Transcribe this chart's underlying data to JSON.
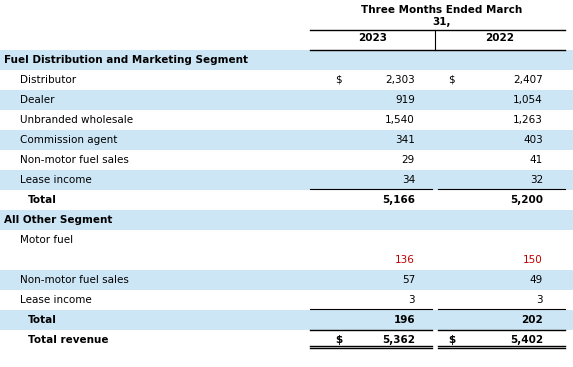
{
  "title_line1": "Three Months Ended March",
  "title_line2": "31,",
  "col_headers": [
    "2023",
    "2022"
  ],
  "bg_light": "#cde6f5",
  "bg_white": "#ffffff",
  "rows": [
    {
      "label": "Fuel Distribution and Marketing Segment",
      "val2023": "",
      "val2022": "",
      "style": "segment_header",
      "bg": "#cde6f5"
    },
    {
      "label": "Distributor",
      "val2023": "2,303",
      "val2022": "2,407",
      "style": "data_dollar",
      "bg": "#ffffff"
    },
    {
      "label": "Dealer",
      "val2023": "919",
      "val2022": "1,054",
      "style": "data",
      "bg": "#cde6f5"
    },
    {
      "label": "Unbranded wholesale",
      "val2023": "1,540",
      "val2022": "1,263",
      "style": "data",
      "bg": "#ffffff"
    },
    {
      "label": "Commission agent",
      "val2023": "341",
      "val2022": "403",
      "style": "data",
      "bg": "#cde6f5"
    },
    {
      "label": "Non-motor fuel sales",
      "val2023": "29",
      "val2022": "41",
      "style": "data",
      "bg": "#ffffff"
    },
    {
      "label": "Lease income",
      "val2023": "34",
      "val2022": "32",
      "style": "data_underline",
      "bg": "#cde6f5"
    },
    {
      "label": "Total",
      "val2023": "5,166",
      "val2022": "5,200",
      "style": "total",
      "bg": "#ffffff"
    },
    {
      "label": "All Other Segment",
      "val2023": "",
      "val2022": "",
      "style": "segment_header",
      "bg": "#cde6f5"
    },
    {
      "label": "Motor fuel",
      "val2023": "",
      "val2022": "",
      "style": "data",
      "bg": "#ffffff"
    },
    {
      "label": "",
      "val2023": "136",
      "val2022": "150",
      "style": "data_red",
      "bg": "#ffffff"
    },
    {
      "label": "Non-motor fuel sales",
      "val2023": "57",
      "val2022": "49",
      "style": "data",
      "bg": "#cde6f5"
    },
    {
      "label": "Lease income",
      "val2023": "3",
      "val2022": "3",
      "style": "data_underline",
      "bg": "#ffffff"
    },
    {
      "label": "Total",
      "val2023": "196",
      "val2022": "202",
      "style": "total",
      "bg": "#cde6f5"
    },
    {
      "label": "Total revenue",
      "val2023": "5,362",
      "val2022": "5,402",
      "style": "total_revenue",
      "bg": "#ffffff"
    }
  ],
  "val_color_red": "#c00000",
  "val_color_black": "#000000"
}
